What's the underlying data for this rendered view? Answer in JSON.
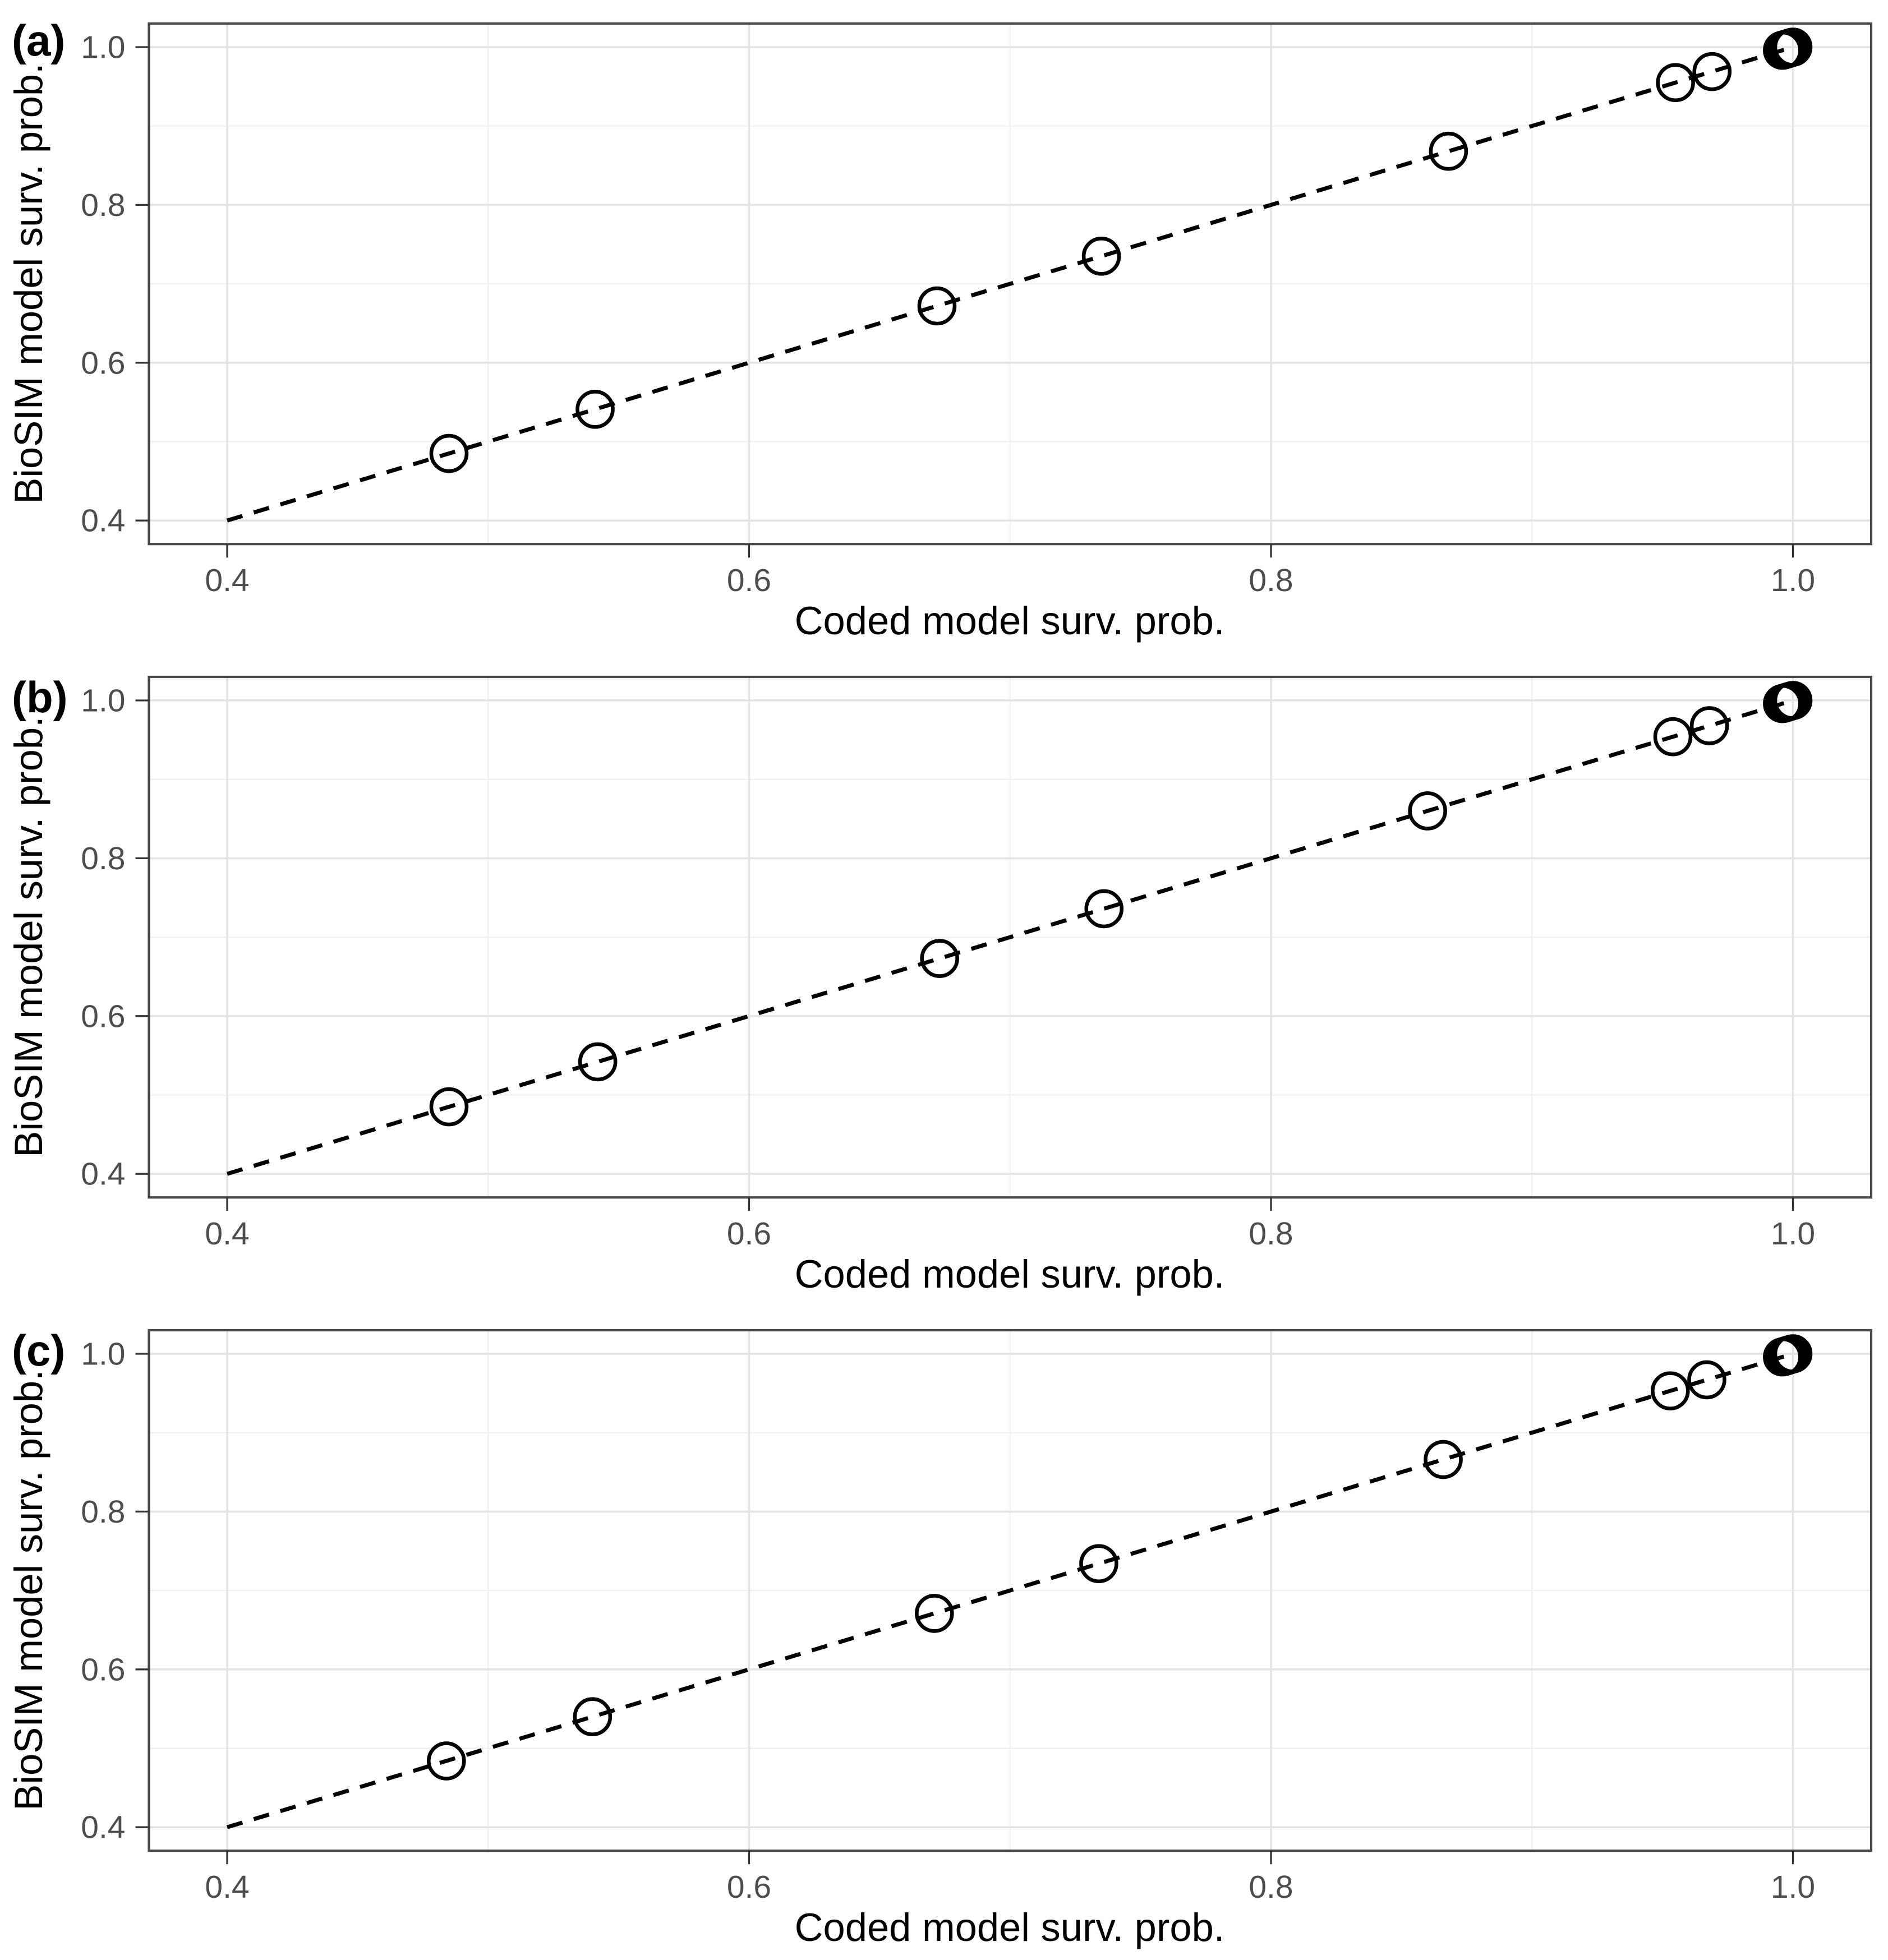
{
  "figure_background": "#ffffff",
  "accent_colors": {
    "panel_border": "#4a4a4a",
    "major_grid": "#e4e4e4",
    "minor_grid": "#f1f1f1",
    "tick_text": "#4d4d4d",
    "data_ink": "#000000"
  },
  "chart_data": [
    {
      "type": "scatter",
      "panel_label": "(a)",
      "xlabel": "Coded model surv. prob.",
      "ylabel": "BioSIM model surv. prob.",
      "x_ticks": [
        0.4,
        0.6,
        0.8,
        1.0
      ],
      "y_ticks": [
        0.4,
        0.6,
        0.8,
        1.0
      ],
      "x_minor_ticks": [
        0.5,
        0.7,
        0.9
      ],
      "y_minor_ticks": [
        0.5,
        0.7,
        0.9
      ],
      "xlim": [
        0.37,
        1.03
      ],
      "ylim": [
        0.37,
        1.03
      ],
      "grid": true,
      "legend": "none",
      "marker": "open-circle",
      "identity_line": {
        "style": "dashed",
        "from": [
          0.4,
          0.4
        ],
        "to": [
          1.0,
          1.0
        ]
      },
      "points": [
        {
          "x": 0.485,
          "y": 0.485
        },
        {
          "x": 0.541,
          "y": 0.541
        },
        {
          "x": 0.672,
          "y": 0.672
        },
        {
          "x": 0.735,
          "y": 0.735
        },
        {
          "x": 0.868,
          "y": 0.868
        },
        {
          "x": 0.955,
          "y": 0.955
        },
        {
          "x": 0.969,
          "y": 0.969
        },
        {
          "x": 0.996,
          "y": 0.996
        },
        {
          "x": 0.997,
          "y": 0.997
        },
        {
          "x": 0.998,
          "y": 0.998
        },
        {
          "x": 0.999,
          "y": 0.999
        },
        {
          "x": 1.0,
          "y": 1.0
        }
      ]
    },
    {
      "type": "scatter",
      "panel_label": "(b)",
      "xlabel": "Coded model surv. prob.",
      "ylabel": "BioSIM model surv. prob.",
      "x_ticks": [
        0.4,
        0.6,
        0.8,
        1.0
      ],
      "y_ticks": [
        0.4,
        0.6,
        0.8,
        1.0
      ],
      "x_minor_ticks": [
        0.5,
        0.7,
        0.9
      ],
      "y_minor_ticks": [
        0.5,
        0.7,
        0.9
      ],
      "xlim": [
        0.37,
        1.03
      ],
      "ylim": [
        0.37,
        1.03
      ],
      "grid": true,
      "legend": "none",
      "marker": "open-circle",
      "identity_line": {
        "style": "dashed",
        "from": [
          0.4,
          0.4
        ],
        "to": [
          1.0,
          1.0
        ]
      },
      "points": [
        {
          "x": 0.485,
          "y": 0.485
        },
        {
          "x": 0.542,
          "y": 0.542
        },
        {
          "x": 0.673,
          "y": 0.673
        },
        {
          "x": 0.736,
          "y": 0.736
        },
        {
          "x": 0.86,
          "y": 0.86
        },
        {
          "x": 0.954,
          "y": 0.954
        },
        {
          "x": 0.968,
          "y": 0.968
        },
        {
          "x": 0.996,
          "y": 0.996
        },
        {
          "x": 0.997,
          "y": 0.997
        },
        {
          "x": 0.998,
          "y": 0.998
        },
        {
          "x": 0.999,
          "y": 0.999
        },
        {
          "x": 1.0,
          "y": 1.0
        }
      ]
    },
    {
      "type": "scatter",
      "panel_label": "(c)",
      "xlabel": "Coded model surv. prob.",
      "ylabel": "BioSIM model surv. prob.",
      "x_ticks": [
        0.4,
        0.6,
        0.8,
        1.0
      ],
      "y_ticks": [
        0.4,
        0.6,
        0.8,
        1.0
      ],
      "x_minor_ticks": [
        0.5,
        0.7,
        0.9
      ],
      "y_minor_ticks": [
        0.5,
        0.7,
        0.9
      ],
      "xlim": [
        0.37,
        1.03
      ],
      "ylim": [
        0.37,
        1.03
      ],
      "grid": true,
      "legend": "none",
      "marker": "open-circle",
      "identity_line": {
        "style": "dashed",
        "from": [
          0.4,
          0.4
        ],
        "to": [
          1.0,
          1.0
        ]
      },
      "points": [
        {
          "x": 0.484,
          "y": 0.484
        },
        {
          "x": 0.54,
          "y": 0.54
        },
        {
          "x": 0.671,
          "y": 0.671
        },
        {
          "x": 0.734,
          "y": 0.734
        },
        {
          "x": 0.866,
          "y": 0.866
        },
        {
          "x": 0.953,
          "y": 0.953
        },
        {
          "x": 0.967,
          "y": 0.967
        },
        {
          "x": 0.996,
          "y": 0.996
        },
        {
          "x": 0.997,
          "y": 0.997
        },
        {
          "x": 0.998,
          "y": 0.998
        },
        {
          "x": 0.999,
          "y": 0.999
        },
        {
          "x": 1.0,
          "y": 1.0
        }
      ]
    }
  ]
}
